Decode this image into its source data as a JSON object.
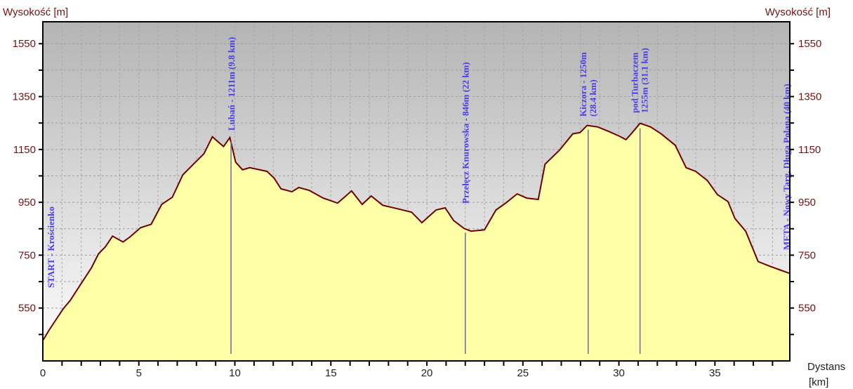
{
  "chart_data": {
    "type": "area",
    "title": "",
    "ylabel_left": "Wysokość [m]",
    "ylabel_right": "Wysokość [m]",
    "xlabel": "Dystans",
    "xunit": "[km]",
    "xlim": [
      0,
      38.9
    ],
    "ylim": [
      350,
      1633
    ],
    "xticks": [
      0,
      5,
      10,
      15,
      20,
      25,
      30,
      35
    ],
    "yticks": [
      550,
      750,
      950,
      1150,
      1350,
      1550
    ],
    "grid": true,
    "colors": {
      "fill": "#ffffa8",
      "line": "#700000",
      "bg_top": "#b4b4b4",
      "bg_bottom": "#ffffff",
      "annotation": "#4a3cf0",
      "marker": "#6a6a9a"
    },
    "x": [
      0,
      0.33,
      1.06,
      1.43,
      1.98,
      2.53,
      2.9,
      3.26,
      3.63,
      4.18,
      4.54,
      5.09,
      5.64,
      6.19,
      6.74,
      7.29,
      7.84,
      8.39,
      8.83,
      9.2,
      9.41,
      9.74,
      10.04,
      10.4,
      10.77,
      11.68,
      12.05,
      12.4,
      12.97,
      13.33,
      13.88,
      14.6,
      15.35,
      16.08,
      16.63,
      17.1,
      17.7,
      18.46,
      19.2,
      19.74,
      20.48,
      20.95,
      21.39,
      21.94,
      22.3,
      23.0,
      23.6,
      24.1,
      24.7,
      25.2,
      25.8,
      26.15,
      26.9,
      27.6,
      27.98,
      28.35,
      28.9,
      29.45,
      30.0,
      30.37,
      30.7,
      31.1,
      31.65,
      32.2,
      32.93,
      33.5,
      34.0,
      34.6,
      35.13,
      35.68,
      36.04,
      36.6,
      37.25,
      37.9,
      38.4,
      38.9
    ],
    "y": [
      427,
      467,
      547,
      579,
      641,
      702,
      755,
      782,
      822,
      800,
      819,
      854,
      867,
      942,
      969,
      1054,
      1094,
      1134,
      1198,
      1174,
      1161,
      1195,
      1102,
      1073,
      1081,
      1067,
      1041,
      1001,
      990,
      1006,
      995,
      966,
      947,
      993,
      942,
      974,
      939,
      926,
      913,
      873,
      921,
      929,
      881,
      851,
      841,
      846,
      921,
      947,
      982,
      966,
      961,
      1094,
      1147,
      1209,
      1214,
      1241,
      1235,
      1219,
      1201,
      1187,
      1214,
      1249,
      1235,
      1209,
      1166,
      1081,
      1067,
      1033,
      979,
      953,
      889,
      841,
      726,
      707,
      694,
      681
    ],
    "annotations": [
      {
        "x": 0,
        "lines": [
          "START - Krościenko"
        ],
        "marker": false
      },
      {
        "x": 9.8,
        "elev": 1180,
        "lines": [
          "Lubań - 1211m (9.8 km)"
        ],
        "marker": true
      },
      {
        "x": 22,
        "elev": 835,
        "lines": [
          "Przełęcz Knurowska - 846m (22 km)"
        ],
        "marker": true
      },
      {
        "x": 28.4,
        "elev": 1225,
        "lines": [
          "Kiczora - 1250m",
          "(28.4 km)"
        ],
        "marker": true
      },
      {
        "x": 31.1,
        "elev": 1230,
        "lines": [
          "pod Turbaczem",
          "1255m (31.1 km)"
        ],
        "marker": true
      },
      {
        "x": 40,
        "lines": [
          "META - Nowy Targ, Długa Polana (40 km)"
        ],
        "marker": false
      }
    ]
  }
}
